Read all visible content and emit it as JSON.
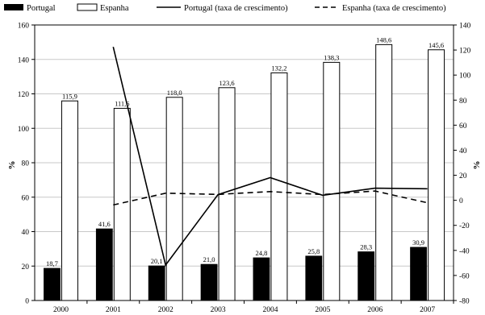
{
  "chart_data": {
    "type": "bar",
    "title": "",
    "xlabel": "",
    "ylabel_left": "%",
    "ylabel_right": "%",
    "categories": [
      "2000",
      "2001",
      "2002",
      "2003",
      "2004",
      "2005",
      "2006",
      "2007"
    ],
    "ylim_left": [
      0,
      160
    ],
    "yticks_left": [
      0,
      20,
      40,
      60,
      80,
      100,
      120,
      140,
      160
    ],
    "ylim_right": [
      -80,
      140
    ],
    "yticks_right": [
      -80,
      -60,
      -40,
      -20,
      0,
      20,
      40,
      60,
      80,
      100,
      120,
      140
    ],
    "grid": "horizontal",
    "legend_position": "top",
    "bar_series": [
      {
        "name": "Portugal",
        "color": "#000000",
        "values": [
          18.7,
          41.6,
          20.1,
          21.0,
          24.8,
          25.8,
          28.3,
          30.9
        ],
        "labels": [
          "18,7",
          "41,6",
          "20,1",
          "21,0",
          "24,8",
          "25,8",
          "28,3",
          "30,9"
        ]
      },
      {
        "name": "Espanha",
        "color": "#ffffff",
        "values": [
          115.9,
          111.6,
          118.0,
          123.6,
          132.2,
          138.3,
          148.6,
          145.6
        ],
        "labels": [
          "115,9",
          "111,6",
          "118,0",
          "123,6",
          "132,2",
          "138,3",
          "148,6",
          "145,6"
        ]
      }
    ],
    "line_series": [
      {
        "name": "Portugal (taxa de crescimento)",
        "axis": "right",
        "style": "solid",
        "values": [
          null,
          122.5,
          -51.7,
          4.5,
          18.1,
          4.0,
          9.7,
          9.2
        ]
      },
      {
        "name": "Espanha (taxa de crescimento)",
        "axis": "right",
        "style": "dashed",
        "values": [
          null,
          -3.7,
          5.7,
          4.7,
          7.0,
          4.6,
          7.4,
          -2.0
        ]
      }
    ]
  }
}
